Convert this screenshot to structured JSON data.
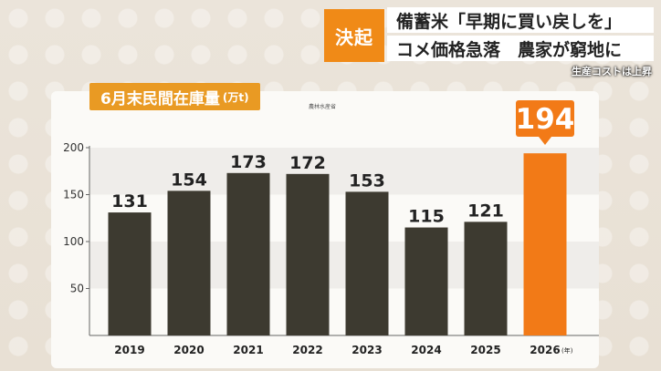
{
  "headline": {
    "tag": "決起",
    "line1": "備蓄米「早期に買い戻しを」",
    "line2": "コメ価格急落　農家が窮地に",
    "subtext": "生産コストは上昇"
  },
  "chart_data": {
    "type": "bar",
    "title": "6月末民間在庫量",
    "unit": "(万t)",
    "source": "農林水産省",
    "categories": [
      "2019",
      "2020",
      "2021",
      "2022",
      "2023",
      "2024",
      "2025",
      "2026"
    ],
    "values": [
      131,
      154,
      173,
      172,
      153,
      115,
      121,
      194
    ],
    "x_unit": "(年)",
    "ylim": [
      0,
      200
    ],
    "yticks": [
      50,
      100,
      150,
      200
    ],
    "highlight_index": 7,
    "colors": {
      "bar": "#3d3a30",
      "highlight": "#f27a17",
      "accent": "#f08a17"
    }
  }
}
